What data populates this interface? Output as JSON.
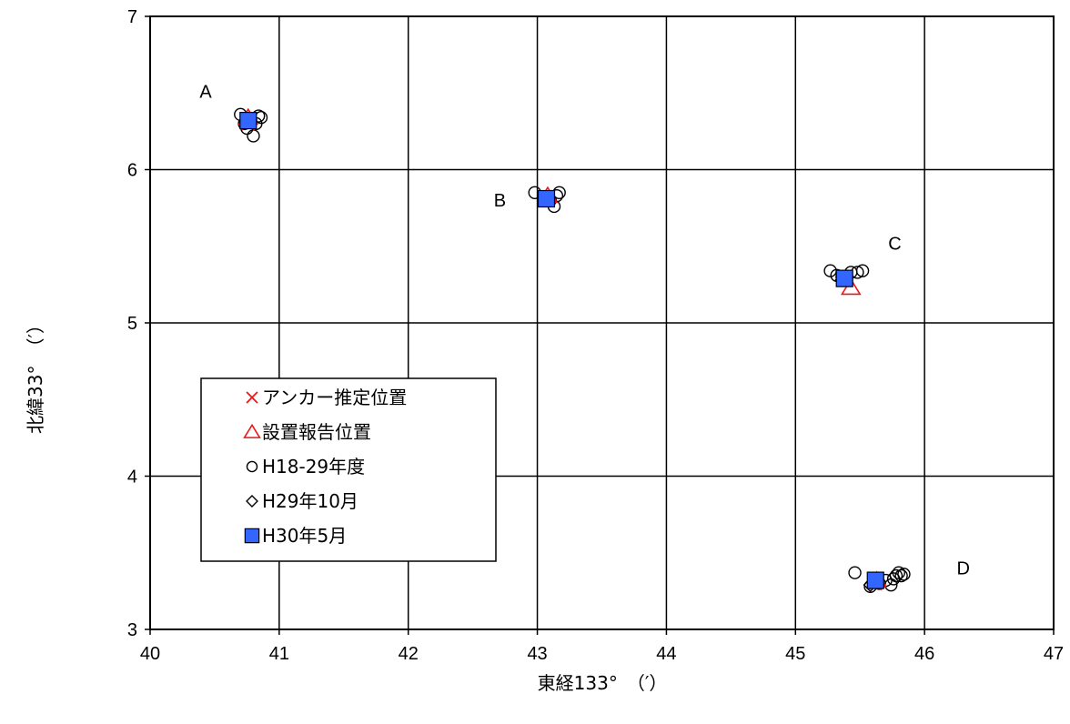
{
  "chart_data": {
    "type": "scatter",
    "xlabel": "東経133°　（′）",
    "ylabel": "北緯33°　（′）",
    "xlim": [
      40,
      47
    ],
    "ylim": [
      3,
      7
    ],
    "xticks": [
      "40",
      "41",
      "42",
      "43",
      "44",
      "45",
      "46",
      "47"
    ],
    "yticks": [
      "3",
      "4",
      "5",
      "6",
      "7"
    ],
    "grid": true,
    "legend_position": "left-center",
    "group_labels": [
      {
        "text": "A",
        "x": 40.43,
        "y": 6.51
      },
      {
        "text": "B",
        "x": 42.71,
        "y": 5.8
      },
      {
        "text": "C",
        "x": 45.77,
        "y": 5.52
      },
      {
        "text": "D",
        "x": 46.3,
        "y": 3.4
      }
    ],
    "series": [
      {
        "name": "アンカー推定位置",
        "marker": "x",
        "color": "#e81818",
        "points": [
          [
            40.76,
            6.3
          ],
          [
            43.08,
            5.81
          ],
          [
            45.38,
            5.29
          ],
          [
            45.62,
            3.3
          ]
        ]
      },
      {
        "name": "設置報告位置",
        "marker": "triangle",
        "color": "#e81818",
        "points": [
          [
            40.76,
            6.34
          ],
          [
            43.08,
            5.83
          ],
          [
            45.43,
            5.23
          ],
          [
            45.63,
            3.32
          ]
        ]
      },
      {
        "name": "H18-29年度",
        "marker": "circle",
        "color": "#000000",
        "points": [
          [
            40.7,
            6.36
          ],
          [
            40.73,
            6.3
          ],
          [
            40.75,
            6.27
          ],
          [
            40.78,
            6.32
          ],
          [
            40.8,
            6.22
          ],
          [
            40.82,
            6.3
          ],
          [
            40.84,
            6.35
          ],
          [
            40.86,
            6.34
          ],
          [
            42.98,
            5.85
          ],
          [
            43.05,
            5.82
          ],
          [
            43.1,
            5.8
          ],
          [
            43.13,
            5.76
          ],
          [
            43.15,
            5.83
          ],
          [
            43.17,
            5.85
          ],
          [
            45.27,
            5.34
          ],
          [
            45.32,
            5.31
          ],
          [
            45.36,
            5.3
          ],
          [
            45.43,
            5.33
          ],
          [
            45.48,
            5.33
          ],
          [
            45.52,
            5.34
          ],
          [
            45.46,
            3.37
          ],
          [
            45.58,
            3.28
          ],
          [
            45.65,
            3.3
          ],
          [
            45.7,
            3.32
          ],
          [
            45.74,
            3.29
          ],
          [
            45.76,
            3.33
          ],
          [
            45.78,
            3.35
          ],
          [
            45.8,
            3.37
          ],
          [
            45.82,
            3.35
          ],
          [
            45.84,
            3.36
          ]
        ]
      },
      {
        "name": "H29年10月",
        "marker": "diamond",
        "color": "#000000",
        "points": [
          [
            40.74,
            6.31
          ],
          [
            43.06,
            5.8
          ],
          [
            45.36,
            5.28
          ],
          [
            45.58,
            3.29
          ]
        ]
      },
      {
        "name": "H30年5月",
        "marker": "square",
        "color": "#3366ff",
        "points": [
          [
            40.76,
            6.32
          ],
          [
            43.07,
            5.81
          ],
          [
            45.38,
            5.29
          ],
          [
            45.62,
            3.32
          ]
        ]
      }
    ]
  }
}
